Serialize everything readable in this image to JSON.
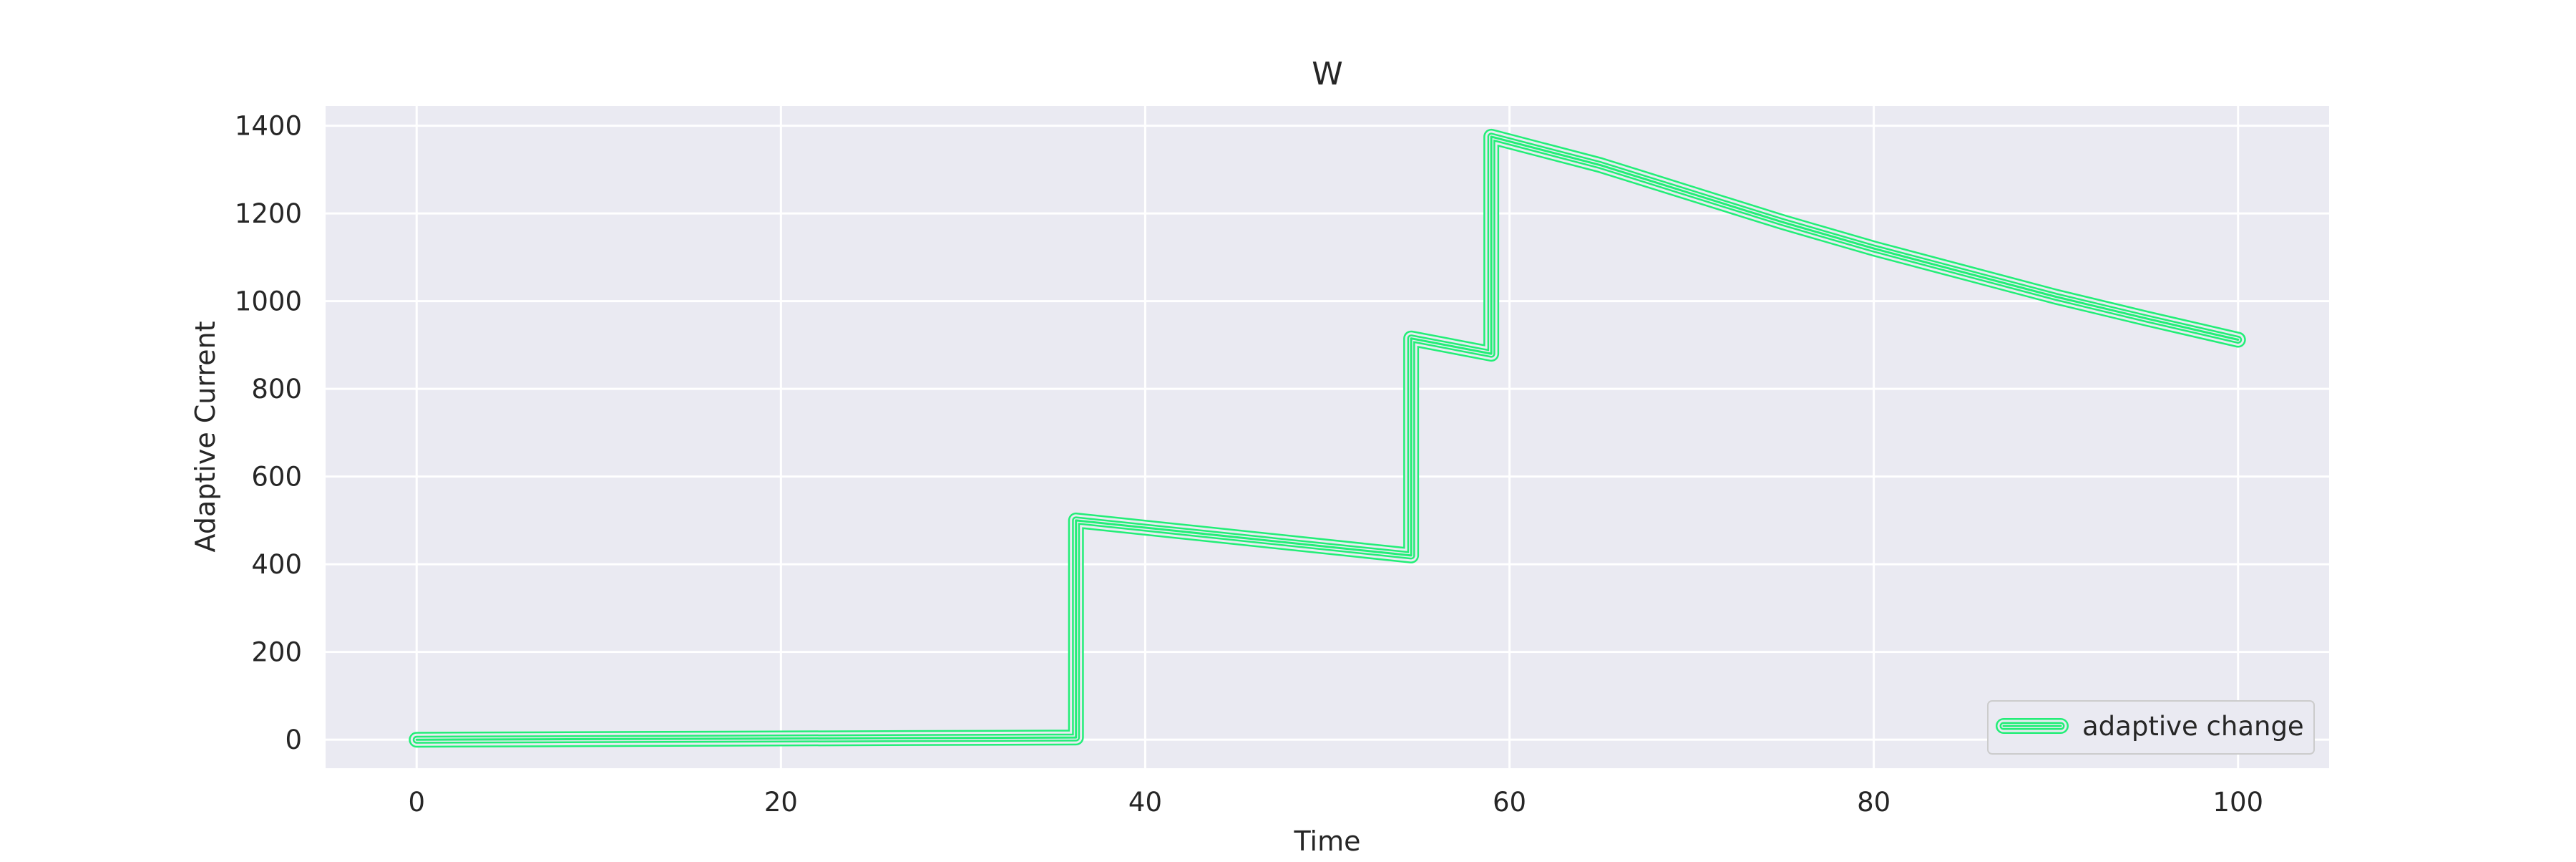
{
  "chart_data": {
    "type": "line",
    "title": "W",
    "xlabel": "Time",
    "ylabel": "Adaptive Current",
    "xlim": [
      -5,
      105
    ],
    "ylim": [
      -65,
      1445
    ],
    "xticks": [
      0,
      20,
      40,
      60,
      80,
      100
    ],
    "yticks": [
      0,
      200,
      400,
      600,
      800,
      1000,
      1200,
      1400
    ],
    "grid": true,
    "legend_position": "lower-right",
    "series": [
      {
        "name": "adaptive change",
        "color": "#22ee77",
        "x": [
          0,
          36.2,
          36.2,
          54.6,
          54.6,
          59.0,
          59.0,
          65,
          70,
          75,
          80,
          85,
          90,
          95,
          100
        ],
        "y": [
          0,
          5,
          500,
          420,
          915,
          880,
          1375,
          1310,
          1245,
          1180,
          1120,
          1065,
          1010,
          960,
          912
        ]
      }
    ]
  }
}
